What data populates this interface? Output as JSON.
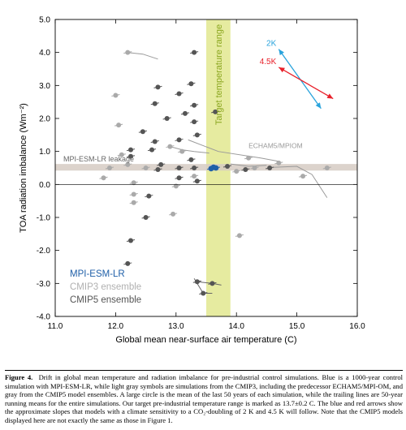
{
  "chart_data": {
    "type": "scatter",
    "xlabel": "Global mean near-surface air temperature (C)",
    "ylabel": "TOA radiation imbalance (Wm⁻²)",
    "xlim": [
      11.0,
      16.0
    ],
    "ylim": [
      -4.0,
      5.0
    ],
    "xticks": [
      "11.0",
      "12.0",
      "13.0",
      "14.0",
      "15.0",
      "16.0"
    ],
    "yticks": [
      "-4.0",
      "-3.0",
      "-2.0",
      "-1.0",
      "0.0",
      "1.0",
      "2.0",
      "3.0",
      "4.0",
      "5.0"
    ],
    "grid": false,
    "target_band": {
      "x": [
        13.5,
        13.9
      ],
      "color": "#e6eba0",
      "label": "Target temperature range"
    },
    "leakage_band": {
      "y": [
        0.42,
        0.62
      ],
      "color": "#d6cbc3",
      "label": "MPI-ESM-LR leakage"
    },
    "zero_line": 0.0,
    "echam_label": "ECHAM5/MPIOM",
    "arrows": [
      {
        "name": "2K",
        "from": [
          14.7,
          4.1
        ],
        "to": [
          15.4,
          2.3
        ],
        "color": "#29a3dc"
      },
      {
        "name": "4.5K",
        "from": [
          14.7,
          3.55
        ],
        "to": [
          15.6,
          2.6
        ],
        "color": "#e8202a"
      }
    ],
    "legend": {
      "placement": "bottom-left",
      "entries": [
        {
          "name": "MPI-ESM-LR",
          "color": "#1f5fa8"
        },
        {
          "name": "CMIP3 ensemble",
          "color": "#b0b0b0"
        },
        {
          "name": "CMIP5 ensemble",
          "color": "#555555"
        }
      ]
    },
    "series": [
      {
        "name": "MPI-ESM-LR",
        "color": "#1f5fa8",
        "points": [
          [
            13.62,
            0.52
          ],
          [
            13.58,
            0.48
          ],
          [
            13.66,
            0.5
          ]
        ]
      },
      {
        "name": "CMIP3 ensemble",
        "color": "#aaaaaa",
        "points": [
          [
            12.2,
            4.0
          ],
          [
            12.0,
            2.7
          ],
          [
            12.05,
            1.8
          ],
          [
            12.9,
            1.15
          ],
          [
            13.1,
            1.0
          ],
          [
            12.1,
            0.9
          ],
          [
            12.2,
            0.6
          ],
          [
            11.9,
            0.5
          ],
          [
            12.5,
            0.5
          ],
          [
            11.8,
            0.2
          ],
          [
            12.3,
            0.05
          ],
          [
            12.3,
            -0.3
          ],
          [
            12.3,
            -0.55
          ],
          [
            13.0,
            -0.05
          ],
          [
            14.2,
            0.8
          ],
          [
            14.7,
            0.65
          ],
          [
            15.5,
            0.5
          ],
          [
            15.1,
            0.25
          ],
          [
            14.3,
            0.5
          ],
          [
            14.0,
            0.4
          ],
          [
            13.3,
            0.25
          ],
          [
            12.95,
            -0.9
          ],
          [
            14.05,
            -1.55
          ]
        ]
      },
      {
        "name": "CMIP5 ensemble",
        "color": "#555555",
        "points": [
          [
            13.3,
            4.0
          ],
          [
            13.25,
            3.05
          ],
          [
            12.7,
            2.95
          ],
          [
            13.05,
            2.75
          ],
          [
            12.65,
            2.45
          ],
          [
            13.3,
            2.4
          ],
          [
            13.15,
            2.15
          ],
          [
            12.85,
            2.0
          ],
          [
            13.65,
            2.2
          ],
          [
            13.3,
            1.9
          ],
          [
            13.35,
            1.5
          ],
          [
            13.05,
            1.35
          ],
          [
            12.65,
            1.3
          ],
          [
            12.45,
            1.6
          ],
          [
            12.25,
            1.05
          ],
          [
            12.6,
            1.05
          ],
          [
            12.25,
            0.85
          ],
          [
            13.25,
            0.75
          ],
          [
            12.75,
            0.6
          ],
          [
            12.7,
            0.45
          ],
          [
            13.05,
            0.5
          ],
          [
            13.3,
            0.5
          ],
          [
            13.85,
            0.55
          ],
          [
            14.15,
            0.45
          ],
          [
            14.55,
            0.5
          ],
          [
            13.05,
            0.2
          ],
          [
            13.35,
            0.1
          ],
          [
            12.55,
            -0.35
          ],
          [
            12.5,
            -1.0
          ],
          [
            12.25,
            -1.7
          ],
          [
            12.2,
            -2.4
          ],
          [
            13.6,
            -3.0
          ],
          [
            13.35,
            -2.95
          ],
          [
            13.45,
            -3.3
          ]
        ]
      }
    ],
    "trails": [
      {
        "color": "#9a9a9a",
        "points": [
          [
            12.2,
            4.0
          ],
          [
            12.45,
            3.95
          ],
          [
            12.7,
            3.8
          ]
        ]
      },
      {
        "color": "#9a9a9a",
        "points": [
          [
            12.9,
            1.15
          ],
          [
            13.1,
            1.05
          ],
          [
            13.3,
            1.0
          ],
          [
            13.55,
            0.95
          ]
        ]
      },
      {
        "color": "#9a9a9a",
        "points": [
          [
            13.2,
            1.35
          ],
          [
            13.7,
            1.0
          ],
          [
            14.4,
            0.8
          ],
          [
            14.7,
            0.7
          ]
        ]
      },
      {
        "color": "#9a9a9a",
        "points": [
          [
            14.6,
            0.52
          ],
          [
            15.0,
            0.55
          ],
          [
            15.25,
            0.3
          ],
          [
            15.5,
            -0.4
          ]
        ]
      },
      {
        "color": "#9a9a9a",
        "points": [
          [
            13.9,
            0.62
          ],
          [
            14.2,
            0.55
          ],
          [
            14.5,
            0.58
          ]
        ]
      },
      {
        "color": "#666666",
        "points": [
          [
            13.35,
            -2.95
          ],
          [
            13.6,
            -3.0
          ],
          [
            13.75,
            -3.05
          ]
        ]
      },
      {
        "color": "#666666",
        "points": [
          [
            13.3,
            -2.85
          ],
          [
            13.45,
            -3.3
          ],
          [
            13.6,
            -3.3
          ]
        ]
      }
    ]
  },
  "caption": {
    "label": "Figure 4.",
    "text": "Drift in global mean temperature and radiation imbalance for pre-industrial control simulations. Blue is a 1000-year control simulation with MPI-ESM-LR, while light gray symbols are simulations from the CMIP3, including the predecessor ECHAM5/MPI-OM, and gray from the CMIP5 model ensembles. A large circle is the mean of the last 50 years of each simulation, while the trailing lines are 50-year running means for the entire simulations. Our target pre-industrial temperature range is marked as 13.7±0.2 C. The blue and red arrows show the approximate slopes that models with a climate sensitivity to a CO₂-doubling of 2 K and 4.5 K will follow. Note that the CMIP5 models displayed here are not exactly the same as those in Figure 1."
  }
}
